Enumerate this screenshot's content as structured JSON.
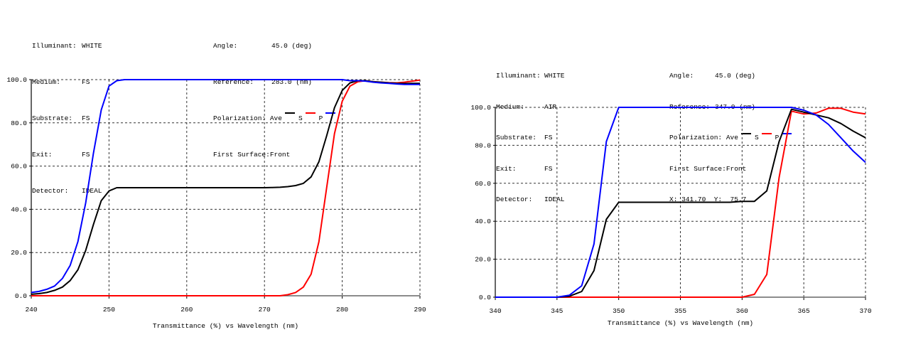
{
  "colors": {
    "ave": "#000000",
    "s": "#ff0000",
    "p": "#0000ff",
    "grid": "#333333"
  },
  "left_header": {
    "illuminant_label": "Illuminant:",
    "illuminant": "WHITE",
    "medium_label": "Medium:",
    "medium": "FS",
    "substrate_label": "Substrate:",
    "substrate": "FS",
    "exit_label": "Exit:",
    "exit": "FS",
    "detector_label": "Detector:",
    "detector": "IDEAL",
    "angle_label": "Angle:",
    "angle": "45.0 (deg)",
    "reference_label": "Reference:",
    "reference": "283.0 (nm)",
    "polarization_label": "Polarization:",
    "ave": "Ave",
    "s": "S",
    "p": "P",
    "first_surface_label": "First Surface:",
    "first_surface": "Front"
  },
  "right_header": {
    "illuminant_label": "Illuminant:",
    "illuminant": "WHITE",
    "medium_label": "Medium:",
    "medium": "AIR",
    "substrate_label": "Substrate:",
    "substrate": "FS",
    "exit_label": "Exit:",
    "exit": "FS",
    "detector_label": "Detector:",
    "detector": "IDEAL",
    "angle_label": "Angle:",
    "angle": "45.0 (deg)",
    "reference_label": "Reference:",
    "reference": "347.0 (nm)",
    "polarization_label": "Polarization:",
    "ave": "Ave",
    "s": "S",
    "p": "P",
    "first_surface_label": "First Surface:",
    "first_surface": "Front",
    "cursor_readout": "X: 341.70  Y:  75.7"
  },
  "chart_data": [
    {
      "type": "line",
      "title": "",
      "xlabel": "Transmittance (%)  vs  Wavelength (nm)",
      "ylabel": "",
      "xlim": [
        240,
        290
      ],
      "ylim": [
        0,
        100
      ],
      "xticks": [
        240,
        250,
        260,
        270,
        280,
        290
      ],
      "xtick_labels": [
        "240",
        "250",
        "260",
        "270",
        "280",
        "290"
      ],
      "yticks": [
        0,
        20,
        40,
        60,
        80,
        100
      ],
      "ytick_labels": [
        "0.0",
        "20.0",
        "40.0",
        "60.0",
        "80.0",
        "100.0"
      ],
      "grid": true,
      "x": [
        240,
        241,
        242,
        243,
        244,
        245,
        246,
        247,
        248,
        249,
        250,
        251,
        252,
        255,
        260,
        265,
        270,
        271,
        272,
        273,
        274,
        275,
        276,
        277,
        278,
        279,
        280,
        281,
        282,
        283,
        284,
        285,
        286,
        287,
        288,
        289,
        290
      ],
      "series": [
        {
          "name": "Ave",
          "color": "#000000",
          "values": [
            0.7,
            1,
            1.5,
            2.5,
            4,
            7,
            12,
            21,
            33,
            44,
            48.5,
            50,
            50,
            50,
            50,
            50,
            50,
            50.1,
            50.2,
            50.5,
            51,
            52,
            55,
            62,
            74,
            87,
            95,
            98.5,
            99.5,
            99.5,
            99,
            98.8,
            98.5,
            98.3,
            98.2,
            98.3,
            98.3
          ]
        },
        {
          "name": "S",
          "color": "#ff0000",
          "values": [
            0,
            0,
            0,
            0,
            0,
            0,
            0,
            0,
            0,
            0,
            0,
            0,
            0,
            0,
            0,
            0,
            0,
            0,
            0,
            0.5,
            1.5,
            4,
            10,
            25,
            50,
            75,
            90,
            97,
            99,
            99.5,
            99,
            98.8,
            98.6,
            98.5,
            98.8,
            99.3,
            99.8
          ]
        },
        {
          "name": "P",
          "color": "#0000ff",
          "values": [
            1.5,
            2,
            3,
            4.5,
            8,
            14,
            25,
            43,
            66,
            86,
            97,
            99.5,
            100,
            100,
            100,
            100,
            100,
            100,
            100,
            100,
            100,
            100,
            100,
            100,
            100,
            100,
            100,
            99.5,
            99.5,
            99.3,
            98.8,
            98.5,
            98.3,
            98,
            97.8,
            97.8,
            97.8
          ]
        }
      ]
    },
    {
      "type": "line",
      "title": "",
      "xlabel": "Transmittance (%)  vs  Wavelength (nm)",
      "ylabel": "",
      "xlim": [
        340,
        370
      ],
      "ylim": [
        0,
        100
      ],
      "xticks": [
        340,
        345,
        350,
        355,
        360,
        365,
        370
      ],
      "xtick_labels": [
        "340",
        "345",
        "350",
        "355",
        "360",
        "365",
        "370"
      ],
      "yticks": [
        0,
        20,
        40,
        60,
        80,
        100
      ],
      "ytick_labels": [
        "0.0",
        "20.0",
        "40.0",
        "60.0",
        "80.0",
        "100.0"
      ],
      "grid": true,
      "x": [
        340,
        341,
        342,
        343,
        344,
        345,
        346,
        347,
        348,
        349,
        350,
        351,
        352,
        353,
        354,
        355,
        356,
        357,
        358,
        359,
        360,
        361,
        362,
        363,
        364,
        365,
        366,
        367,
        368,
        369,
        370
      ],
      "series": [
        {
          "name": "Ave",
          "color": "#000000",
          "values": [
            0,
            0,
            0,
            0,
            0,
            0,
            0.5,
            3,
            14,
            41,
            50,
            50,
            50,
            50,
            50,
            50,
            50,
            50,
            50,
            50,
            50.5,
            50.5,
            56,
            82,
            99,
            97.5,
            96,
            94.5,
            91.5,
            87.5,
            84
          ]
        },
        {
          "name": "S",
          "color": "#ff0000",
          "values": [
            0,
            0,
            0,
            0,
            0,
            0,
            0,
            0,
            0,
            0,
            0,
            0,
            0,
            0,
            0,
            0,
            0,
            0,
            0,
            0,
            0,
            1.5,
            12,
            63,
            98,
            96.5,
            97,
            99.5,
            99.5,
            97.5,
            96.5
          ]
        },
        {
          "name": "P",
          "color": "#0000ff",
          "values": [
            0,
            0,
            0,
            0,
            0,
            0,
            1,
            6,
            28,
            82,
            100,
            100,
            100,
            100,
            100,
            100,
            100,
            100,
            100,
            100,
            100,
            100,
            100,
            100,
            100,
            98.5,
            96,
            91,
            84,
            77,
            71
          ]
        }
      ]
    }
  ]
}
